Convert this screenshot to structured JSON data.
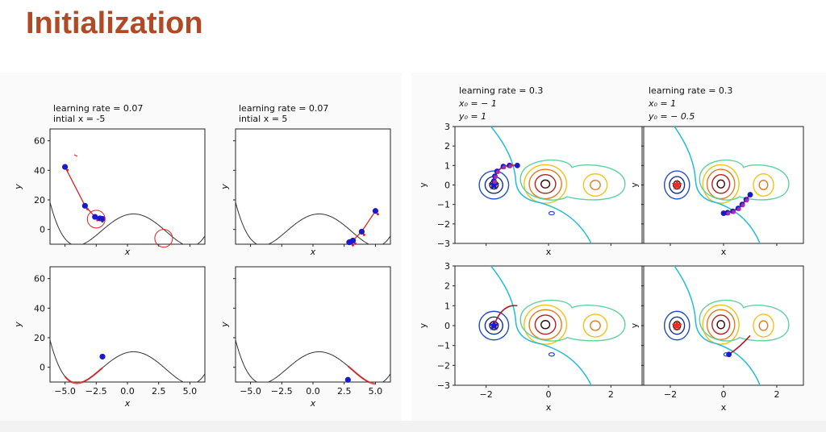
{
  "slide": {
    "title": "Initialization"
  },
  "colors": {
    "title": "#b04a25",
    "curve": "#333333",
    "points": "#1a1acc",
    "path": "#dd2222",
    "annotation": "#dd2222",
    "boundary": "#22bbdd",
    "contours": [
      "#13308a",
      "#1f4fc2",
      "#3a8fd8",
      "#5fd0a0",
      "#b8d94a",
      "#f2c21b",
      "#e07b1f",
      "#b81e1e",
      "#3a0a0a"
    ]
  },
  "left_figure": {
    "panels": [
      {
        "title_lines": [
          "learning rate = 0.07",
          " intial x = -5"
        ],
        "xlabel": "x",
        "ylabel": "y"
      },
      {
        "title_lines": [
          "learning rate = 0.07",
          " intial x = 5"
        ],
        "xlabel": "x",
        "ylabel": "y"
      },
      {
        "title_lines": [],
        "xlabel": "x",
        "ylabel": "y"
      },
      {
        "title_lines": [],
        "xlabel": "x",
        "ylabel": "y"
      }
    ],
    "xticks": [
      "−5.0",
      "−2.5",
      "0.0",
      "2.5",
      "5.0"
    ],
    "yticks": [
      "0",
      "20",
      "40",
      "60"
    ]
  },
  "right_figure": {
    "panels": [
      {
        "title_lines": [
          "learning rate = 0.3",
          "x₀ = − 1",
          "y₀ = 1"
        ],
        "xlabel": "x",
        "ylabel": "y"
      },
      {
        "title_lines": [
          "learning rate = 0.3",
          "x₀ = 1",
          "y₀ = − 0.5"
        ],
        "xlabel": "x",
        "ylabel": "y"
      },
      {
        "title_lines": [],
        "xlabel": "x",
        "ylabel": "y"
      },
      {
        "title_lines": [],
        "xlabel": "x",
        "ylabel": "y"
      }
    ],
    "xticks": [
      "−2",
      "0",
      "2"
    ],
    "yticks": [
      "−3",
      "−2",
      "−1",
      "0",
      "1",
      "2",
      "3"
    ]
  },
  "chart_data": [
    {
      "type": "line",
      "title": "learning rate = 0.07 intial x = -5",
      "xlabel": "x",
      "ylabel": "y",
      "xlim": [
        -6.2,
        6.2
      ],
      "ylim": [
        -10,
        68
      ],
      "curve": "y = x^4/20 - 0.1x^3 - 2x^2 + 2x + 10 (approx.)",
      "gd_points": [
        {
          "x": -5,
          "y": 42.3
        },
        {
          "x": -3.4,
          "y": 16
        },
        {
          "x": -2.6,
          "y": 8.5
        },
        {
          "x": -2.2,
          "y": 7.5
        },
        {
          "x": -2.0,
          "y": 7.2
        }
      ]
    },
    {
      "type": "line",
      "title": "learning rate = 0.07 intial x = 5",
      "xlabel": "x",
      "ylabel": "y",
      "xlim": [
        -6.2,
        6.2
      ],
      "ylim": [
        -10,
        68
      ],
      "gd_points": [
        {
          "x": 5,
          "y": 12.5
        },
        {
          "x": 3.9,
          "y": -1.5
        },
        {
          "x": 3.2,
          "y": -7.5
        },
        {
          "x": 3.0,
          "y": -8.5
        },
        {
          "x": 2.9,
          "y": -8.7
        }
      ]
    },
    {
      "type": "line",
      "xlabel": "x",
      "ylabel": "y",
      "xlim": [
        -6.2,
        6.2
      ],
      "ylim": [
        -10,
        68
      ],
      "gd_points": [
        {
          "x": -2.0,
          "y": 7.2
        }
      ]
    },
    {
      "type": "line",
      "xlabel": "x",
      "ylabel": "y",
      "xlim": [
        -6.2,
        6.2
      ],
      "ylim": [
        -10,
        68
      ],
      "gd_points": [
        {
          "x": 2.8,
          "y": -8.5
        }
      ]
    },
    {
      "type": "contour",
      "title": "learning rate = 0.3",
      "xlabel": "x",
      "ylabel": "y",
      "xlim": [
        -3,
        3
      ],
      "ylim": [
        -3,
        3
      ],
      "minima": [
        {
          "x": -1.75,
          "y": 0
        },
        {
          "x": -0.1,
          "y": 0
        },
        {
          "x": 1.5,
          "y": 0
        }
      ],
      "start": {
        "x": -1,
        "y": 1
      },
      "gd_points": [
        {
          "x": -1,
          "y": 1
        },
        {
          "x": -1.25,
          "y": 1
        },
        {
          "x": -1.45,
          "y": 0.95
        },
        {
          "x": -1.65,
          "y": 0.7
        },
        {
          "x": -1.72,
          "y": 0.45
        },
        {
          "x": -1.75,
          "y": 0.2
        },
        {
          "x": -1.75,
          "y": 0
        }
      ]
    },
    {
      "type": "contour",
      "title": "learning rate = 0.3",
      "xlabel": "x",
      "ylabel": "y",
      "xlim": [
        -3,
        3
      ],
      "ylim": [
        -3,
        3
      ],
      "minima": [
        {
          "x": -1.75,
          "y": 0
        },
        {
          "x": -0.1,
          "y": 0
        },
        {
          "x": 1.5,
          "y": 0
        }
      ],
      "start": {
        "x": 1,
        "y": -0.5
      },
      "gd_points": [
        {
          "x": 1,
          "y": -0.5
        },
        {
          "x": 0.85,
          "y": -0.75
        },
        {
          "x": 0.7,
          "y": -1.0
        },
        {
          "x": 0.55,
          "y": -1.2
        },
        {
          "x": 0.35,
          "y": -1.35
        },
        {
          "x": 0.15,
          "y": -1.42
        },
        {
          "x": 0,
          "y": -1.45
        }
      ]
    },
    {
      "type": "contour",
      "xlabel": "x",
      "ylabel": "y",
      "xlim": [
        -3,
        3
      ],
      "ylim": [
        -3,
        3
      ],
      "gd_points": [
        {
          "x": -1.75,
          "y": 0
        }
      ]
    },
    {
      "type": "contour",
      "xlabel": "x",
      "ylabel": "y",
      "xlim": [
        -3,
        3
      ],
      "ylim": [
        -3,
        3
      ],
      "gd_points": [
        {
          "x": 0.2,
          "y": -1.45
        }
      ]
    }
  ]
}
